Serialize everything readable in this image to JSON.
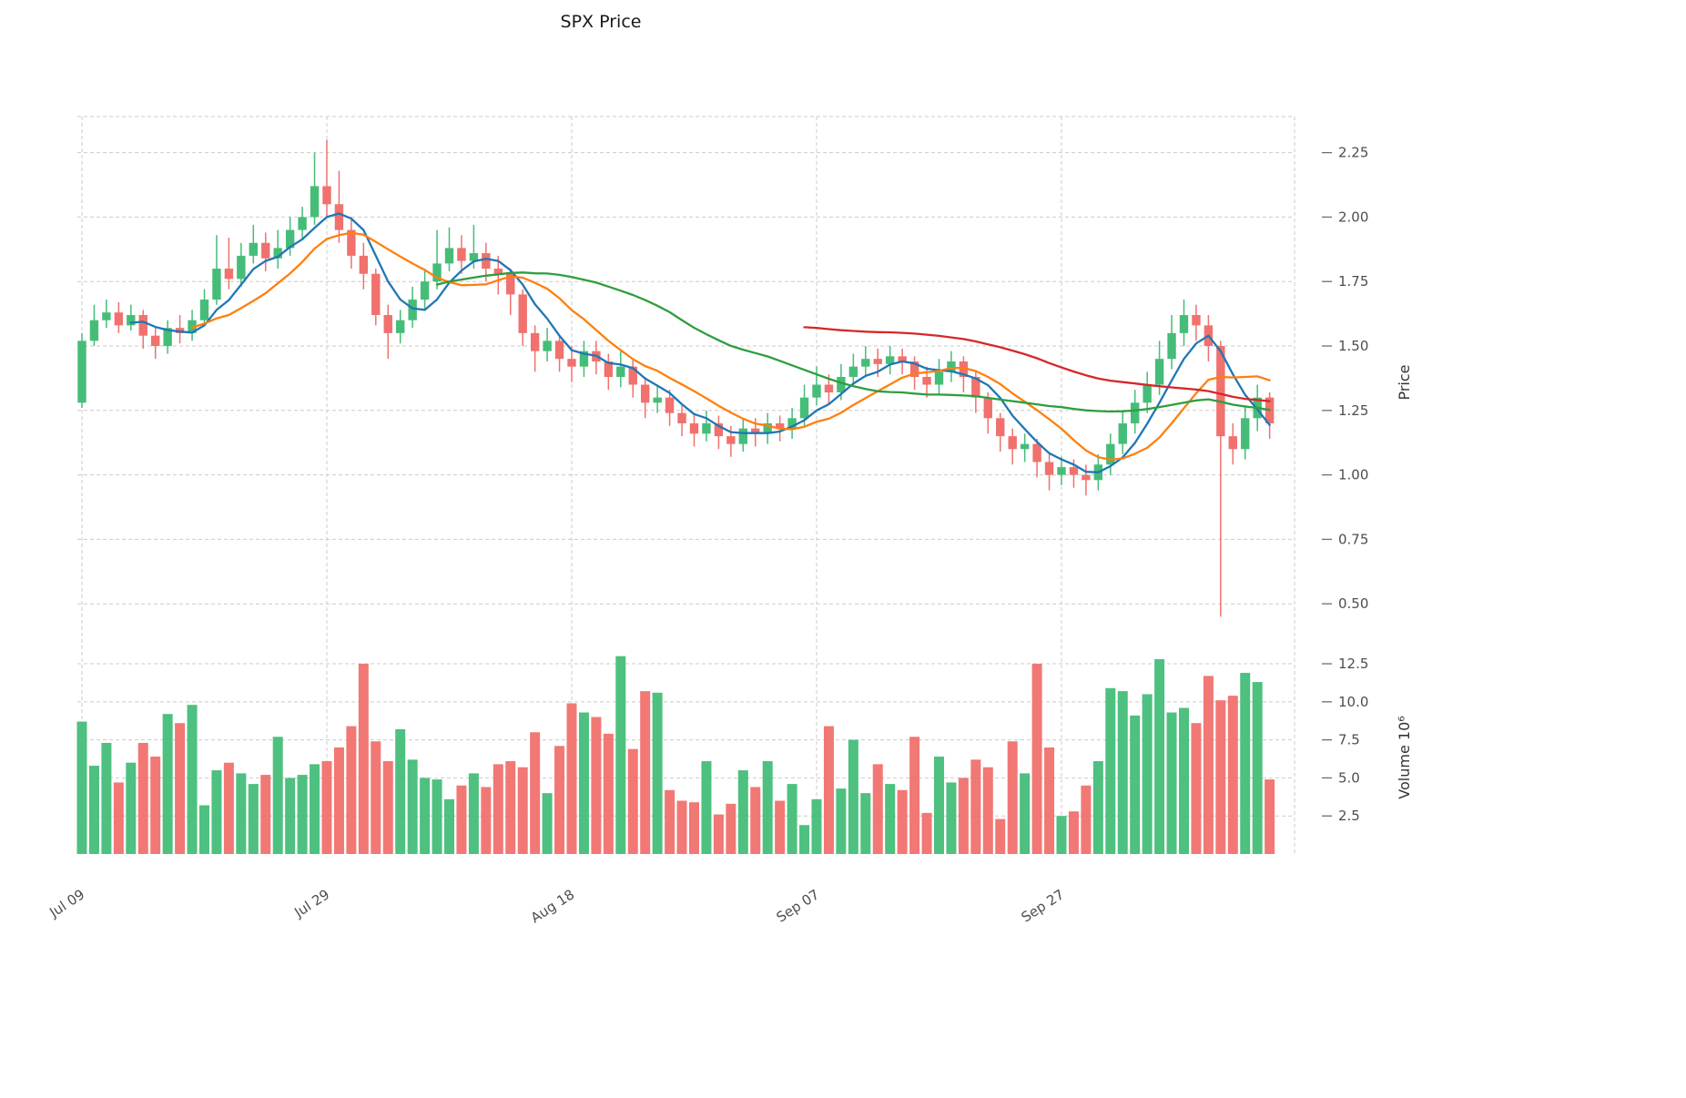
{
  "title": "SPX Price",
  "colors": {
    "background": "#ffffff",
    "up": "#45bd78",
    "down": "#f0716d",
    "grid": "#cbcbcb",
    "text": "#4d4d4d",
    "ma_fast": "#1f77b4",
    "ma_mid": "#ff7f0e",
    "ma_slow": "#2e9e3e",
    "ma_long": "#d62728"
  },
  "chart_data": {
    "type": "candlestick",
    "title": "SPX Price",
    "panels": [
      "price",
      "volume"
    ],
    "grid": "dashed",
    "legend": "none",
    "price_axis": {
      "label": "Price",
      "side": "right",
      "ticks": [
        0.5,
        0.75,
        1.0,
        1.25,
        1.5,
        1.75,
        2.0,
        2.25
      ],
      "range": [
        0.37,
        2.39
      ]
    },
    "volume_axis": {
      "label": "Volume 10⁶",
      "side": "right",
      "unit": "millions",
      "ticks": [
        2.5,
        5.0,
        7.5,
        10.0,
        12.5
      ],
      "range": [
        0,
        13.4
      ]
    },
    "x_tick_labels": [
      "Jul 09",
      "Jul 29",
      "Aug 18",
      "Sep 07",
      "Sep 27"
    ],
    "x_tick_indices": [
      0,
      20,
      40,
      60,
      80
    ],
    "moving_averages": [
      {
        "window": 5,
        "color": "#1f77b4"
      },
      {
        "window": 10,
        "color": "#ff7f0e"
      },
      {
        "window": 30,
        "color": "#2e9e3e"
      },
      {
        "window": 60,
        "color": "#d62728"
      }
    ],
    "ohlcv_columns": [
      "open",
      "high",
      "low",
      "close",
      "volume_millions"
    ],
    "ohlcv": [
      [
        1.28,
        1.55,
        1.26,
        1.52,
        8.7
      ],
      [
        1.52,
        1.66,
        1.5,
        1.6,
        5.8
      ],
      [
        1.6,
        1.68,
        1.57,
        1.63,
        7.3
      ],
      [
        1.63,
        1.67,
        1.55,
        1.58,
        4.7
      ],
      [
        1.58,
        1.66,
        1.56,
        1.62,
        6.0
      ],
      [
        1.62,
        1.64,
        1.49,
        1.54,
        7.3
      ],
      [
        1.54,
        1.57,
        1.45,
        1.5,
        6.4
      ],
      [
        1.5,
        1.6,
        1.47,
        1.57,
        9.2
      ],
      [
        1.57,
        1.62,
        1.51,
        1.55,
        8.6
      ],
      [
        1.55,
        1.64,
        1.52,
        1.6,
        9.8
      ],
      [
        1.6,
        1.72,
        1.58,
        1.68,
        3.2
      ],
      [
        1.68,
        1.93,
        1.66,
        1.8,
        5.5
      ],
      [
        1.8,
        1.92,
        1.72,
        1.76,
        6.0
      ],
      [
        1.76,
        1.9,
        1.73,
        1.85,
        5.3
      ],
      [
        1.85,
        1.97,
        1.82,
        1.9,
        4.6
      ],
      [
        1.9,
        1.94,
        1.79,
        1.84,
        5.2
      ],
      [
        1.84,
        1.95,
        1.8,
        1.88,
        7.7
      ],
      [
        1.88,
        2.0,
        1.85,
        1.95,
        5.0
      ],
      [
        1.95,
        2.04,
        1.91,
        2.0,
        5.2
      ],
      [
        2.0,
        2.25,
        1.97,
        2.12,
        5.9
      ],
      [
        2.12,
        2.3,
        2.0,
        2.05,
        6.1
      ],
      [
        2.05,
        2.18,
        1.9,
        1.95,
        7.0
      ],
      [
        1.95,
        2.0,
        1.8,
        1.85,
        8.4
      ],
      [
        1.85,
        1.9,
        1.72,
        1.78,
        12.5
      ],
      [
        1.78,
        1.8,
        1.58,
        1.62,
        7.4
      ],
      [
        1.62,
        1.66,
        1.45,
        1.55,
        6.1
      ],
      [
        1.55,
        1.64,
        1.51,
        1.6,
        8.2
      ],
      [
        1.6,
        1.73,
        1.57,
        1.68,
        6.2
      ],
      [
        1.68,
        1.8,
        1.64,
        1.75,
        5.0
      ],
      [
        1.75,
        1.95,
        1.72,
        1.82,
        4.9
      ],
      [
        1.82,
        1.96,
        1.79,
        1.88,
        3.6
      ],
      [
        1.88,
        1.93,
        1.78,
        1.83,
        4.5
      ],
      [
        1.83,
        1.97,
        1.8,
        1.86,
        5.3
      ],
      [
        1.86,
        1.9,
        1.75,
        1.8,
        4.4
      ],
      [
        1.8,
        1.85,
        1.7,
        1.78,
        5.9
      ],
      [
        1.78,
        1.8,
        1.62,
        1.7,
        6.1
      ],
      [
        1.7,
        1.72,
        1.5,
        1.55,
        5.7
      ],
      [
        1.55,
        1.58,
        1.4,
        1.48,
        8.0
      ],
      [
        1.48,
        1.57,
        1.44,
        1.52,
        4.0
      ],
      [
        1.52,
        1.54,
        1.4,
        1.45,
        7.1
      ],
      [
        1.45,
        1.5,
        1.36,
        1.42,
        9.9
      ],
      [
        1.42,
        1.52,
        1.38,
        1.48,
        9.3
      ],
      [
        1.48,
        1.52,
        1.39,
        1.44,
        9.0
      ],
      [
        1.44,
        1.47,
        1.33,
        1.38,
        7.9
      ],
      [
        1.38,
        1.48,
        1.34,
        1.42,
        13.0
      ],
      [
        1.42,
        1.45,
        1.3,
        1.35,
        6.9
      ],
      [
        1.35,
        1.38,
        1.22,
        1.28,
        10.7
      ],
      [
        1.28,
        1.35,
        1.24,
        1.3,
        10.6
      ],
      [
        1.3,
        1.33,
        1.19,
        1.24,
        4.2
      ],
      [
        1.24,
        1.27,
        1.15,
        1.2,
        3.5
      ],
      [
        1.2,
        1.24,
        1.11,
        1.16,
        3.4
      ],
      [
        1.16,
        1.25,
        1.13,
        1.2,
        6.1
      ],
      [
        1.2,
        1.23,
        1.1,
        1.15,
        2.6
      ],
      [
        1.15,
        1.19,
        1.07,
        1.12,
        3.3
      ],
      [
        1.12,
        1.22,
        1.09,
        1.18,
        5.5
      ],
      [
        1.18,
        1.22,
        1.11,
        1.16,
        4.4
      ],
      [
        1.16,
        1.24,
        1.12,
        1.2,
        6.1
      ],
      [
        1.2,
        1.23,
        1.13,
        1.18,
        3.5
      ],
      [
        1.18,
        1.26,
        1.14,
        1.22,
        4.6
      ],
      [
        1.22,
        1.35,
        1.19,
        1.3,
        1.9
      ],
      [
        1.3,
        1.42,
        1.27,
        1.35,
        3.6
      ],
      [
        1.35,
        1.39,
        1.27,
        1.32,
        8.4
      ],
      [
        1.32,
        1.43,
        1.29,
        1.38,
        4.3
      ],
      [
        1.38,
        1.47,
        1.34,
        1.42,
        7.5
      ],
      [
        1.42,
        1.5,
        1.38,
        1.45,
        4.0
      ],
      [
        1.45,
        1.49,
        1.38,
        1.43,
        5.9
      ],
      [
        1.43,
        1.5,
        1.39,
        1.46,
        4.6
      ],
      [
        1.46,
        1.49,
        1.39,
        1.44,
        4.2
      ],
      [
        1.44,
        1.46,
        1.33,
        1.38,
        7.7
      ],
      [
        1.38,
        1.42,
        1.3,
        1.35,
        2.7
      ],
      [
        1.35,
        1.45,
        1.31,
        1.4,
        6.4
      ],
      [
        1.4,
        1.48,
        1.36,
        1.44,
        4.7
      ],
      [
        1.44,
        1.46,
        1.32,
        1.38,
        5.0
      ],
      [
        1.38,
        1.4,
        1.24,
        1.3,
        6.2
      ],
      [
        1.3,
        1.32,
        1.16,
        1.22,
        5.7
      ],
      [
        1.22,
        1.24,
        1.09,
        1.15,
        2.3
      ],
      [
        1.15,
        1.18,
        1.04,
        1.1,
        7.4
      ],
      [
        1.1,
        1.16,
        1.05,
        1.12,
        5.3
      ],
      [
        1.12,
        1.14,
        0.99,
        1.05,
        12.5
      ],
      [
        1.05,
        1.08,
        0.94,
        1.0,
        7.0
      ],
      [
        1.0,
        1.07,
        0.96,
        1.03,
        2.5
      ],
      [
        1.03,
        1.06,
        0.95,
        1.0,
        2.8
      ],
      [
        1.0,
        1.04,
        0.92,
        0.98,
        4.5
      ],
      [
        0.98,
        1.08,
        0.94,
        1.04,
        6.1
      ],
      [
        1.04,
        1.16,
        1.0,
        1.12,
        10.9
      ],
      [
        1.12,
        1.25,
        1.08,
        1.2,
        10.7
      ],
      [
        1.2,
        1.33,
        1.16,
        1.28,
        9.1
      ],
      [
        1.28,
        1.4,
        1.24,
        1.35,
        10.5
      ],
      [
        1.35,
        1.52,
        1.31,
        1.45,
        12.8
      ],
      [
        1.45,
        1.62,
        1.41,
        1.55,
        9.3
      ],
      [
        1.55,
        1.68,
        1.5,
        1.62,
        9.6
      ],
      [
        1.62,
        1.66,
        1.52,
        1.58,
        8.6
      ],
      [
        1.58,
        1.62,
        1.44,
        1.5,
        11.7
      ],
      [
        1.5,
        1.52,
        0.45,
        1.15,
        10.1
      ],
      [
        1.15,
        1.2,
        1.04,
        1.1,
        10.4
      ],
      [
        1.1,
        1.27,
        1.06,
        1.22,
        11.9
      ],
      [
        1.22,
        1.35,
        1.17,
        1.3,
        11.3
      ],
      [
        1.3,
        1.32,
        1.14,
        1.2,
        4.9
      ]
    ]
  }
}
